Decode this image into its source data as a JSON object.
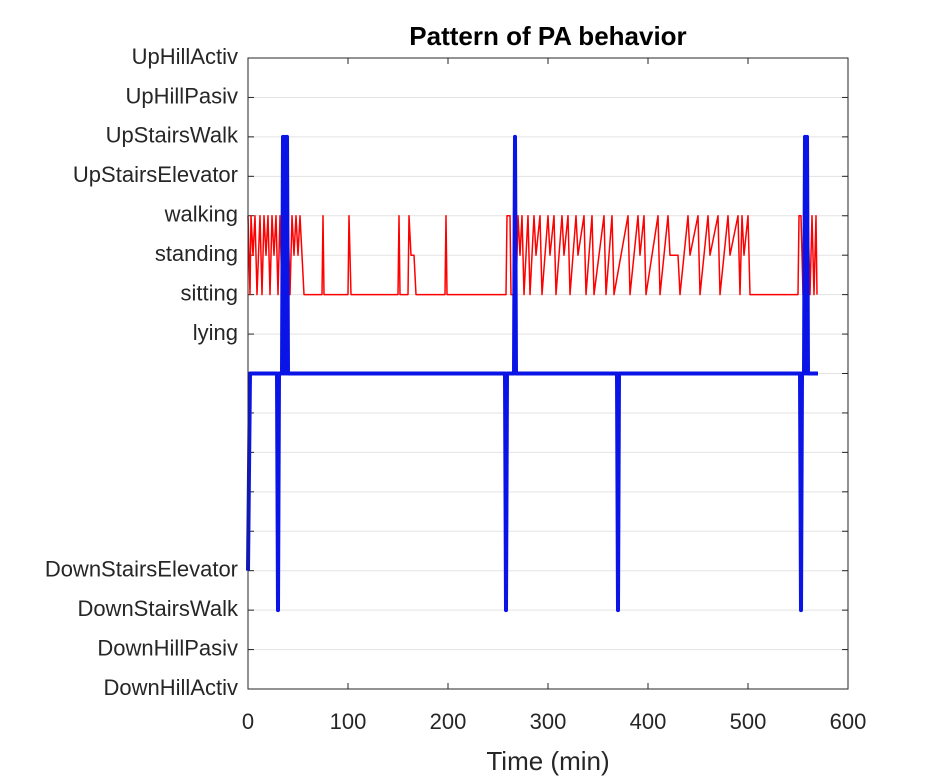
{
  "chart_data": {
    "type": "line",
    "title": "Pattern of PA behavior",
    "x_label": "Time (min)",
    "xlim": [
      0,
      600
    ],
    "xticks": [
      0,
      100,
      200,
      300,
      400,
      500,
      600
    ],
    "ylim": [
      -8,
      8
    ],
    "yticks": [
      {
        "value": 8,
        "label": "UpHillActiv"
      },
      {
        "value": 7,
        "label": "UpHillPasiv"
      },
      {
        "value": 6,
        "label": "UpStairsWalk"
      },
      {
        "value": 5,
        "label": "UpStairsElevator"
      },
      {
        "value": 4,
        "label": "walking"
      },
      {
        "value": 3,
        "label": "standing"
      },
      {
        "value": 2,
        "label": "sitting"
      },
      {
        "value": 1,
        "label": "lying"
      },
      {
        "value": 0,
        "label": null
      },
      {
        "value": -1,
        "label": null
      },
      {
        "value": -2,
        "label": null
      },
      {
        "value": -3,
        "label": null
      },
      {
        "value": -4,
        "label": null
      },
      {
        "value": -5,
        "label": "DownStairsElevator"
      },
      {
        "value": -6,
        "label": "DownStairsWalk"
      },
      {
        "value": -7,
        "label": "DownHillPasiv"
      },
      {
        "value": -8,
        "label": "DownHillActiv"
      }
    ],
    "grid": true,
    "series": [
      {
        "color": "#ff0000",
        "width": 1.5,
        "x": [
          0,
          2,
          3,
          5,
          7,
          9,
          12,
          14,
          16,
          18,
          20,
          22,
          24,
          26,
          28,
          30,
          32,
          34,
          36,
          38,
          40,
          42,
          44,
          46,
          48,
          50,
          52,
          54,
          56,
          74,
          75,
          76,
          100,
          101,
          103,
          150,
          151,
          152,
          160,
          161,
          163,
          166,
          168,
          197,
          198,
          199,
          258,
          259,
          262,
          263,
          268,
          270,
          272,
          274,
          276,
          280,
          282,
          286,
          288,
          292,
          294,
          300,
          302,
          306,
          308,
          314,
          316,
          320,
          322,
          328,
          330,
          336,
          338,
          344,
          346,
          356,
          358,
          364,
          366,
          380,
          382,
          390,
          392,
          396,
          398,
          410,
          412,
          420,
          422,
          430,
          432,
          440,
          442,
          450,
          452,
          460,
          462,
          470,
          472,
          480,
          482,
          490,
          492,
          494,
          496,
          500,
          502,
          550,
          551,
          553,
          555,
          560,
          562,
          564,
          566,
          568,
          569
        ],
        "values": [
          4,
          2,
          4,
          3,
          4,
          2,
          4,
          2,
          4,
          3,
          4,
          2,
          4,
          3,
          4,
          2,
          4,
          2,
          4,
          3,
          4,
          2,
          4,
          3,
          4,
          3,
          4,
          3,
          2,
          2,
          4,
          2,
          2,
          4,
          2,
          2,
          4,
          2,
          2,
          4,
          3,
          3,
          2,
          2,
          4,
          2,
          2,
          4,
          4,
          2,
          2,
          4,
          3,
          4,
          2,
          4,
          2,
          4,
          3,
          4,
          2,
          4,
          3,
          4,
          2,
          4,
          3,
          4,
          2,
          4,
          3,
          4,
          2,
          4,
          2,
          4,
          2,
          4,
          2,
          4,
          2,
          4,
          3,
          4,
          2,
          4,
          2,
          4,
          3,
          3,
          2,
          4,
          3,
          4,
          2,
          4,
          3,
          4,
          2,
          4,
          3,
          4,
          2,
          4,
          3,
          4,
          2,
          2,
          4,
          4,
          2,
          4,
          2,
          4,
          2,
          4,
          2
        ]
      },
      {
        "color": "#0a14e6",
        "width": 4,
        "x": [
          0,
          2,
          29,
          30,
          31,
          34,
          35,
          36,
          37,
          38,
          39,
          40,
          257,
          258,
          259,
          266,
          267,
          268,
          369,
          370,
          371,
          552,
          553,
          554,
          556,
          557,
          558,
          559,
          560,
          570
        ],
        "values": [
          -5,
          0,
          0,
          -6,
          0,
          0,
          6,
          0,
          6,
          0,
          6,
          0,
          0,
          -6,
          0,
          0,
          6,
          0,
          0,
          -6,
          0,
          0,
          -6,
          0,
          0,
          6,
          0,
          6,
          0,
          0
        ]
      }
    ]
  }
}
